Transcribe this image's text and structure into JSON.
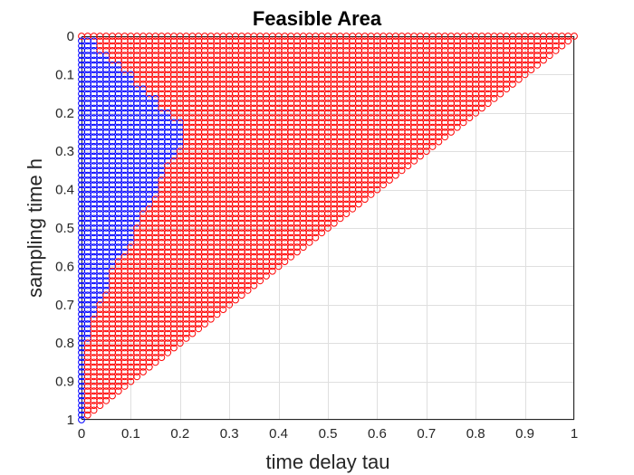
{
  "chart_data": {
    "type": "scatter",
    "title": "Feasible Area",
    "xlabel": "time delay tau",
    "ylabel": "sampling time h",
    "xlim": [
      0,
      1
    ],
    "ylim": [
      0,
      1
    ],
    "y_reversed": true,
    "grid": true,
    "x_ticks": [
      "0",
      "0.1",
      "0.2",
      "0.3",
      "0.4",
      "0.5",
      "0.6",
      "0.7",
      "0.8",
      "0.9",
      "1"
    ],
    "y_ticks": [
      "0",
      "0.1",
      "0.2",
      "0.3",
      "0.4",
      "0.5",
      "0.6",
      "0.7",
      "0.8",
      "0.9",
      "1"
    ],
    "marker": "circle-open",
    "colors": {
      "feasible": "#0000ff",
      "infeasible": "#ff0000"
    },
    "grid_step": {
      "tau": 0.0125,
      "h": 0.0125
    },
    "region_rule": "points with 0 <= tau <= 1 - h",
    "series": [
      {
        "color_key": "feasible",
        "boundary_tau_max_by_h": [
          [
            0.025,
            0.025
          ],
          [
            0.0375,
            0.025
          ],
          [
            0.05,
            0.05
          ],
          [
            0.0625,
            0.05
          ],
          [
            0.075,
            0.075
          ],
          [
            0.0875,
            0.075
          ],
          [
            0.1,
            0.1
          ],
          [
            0.125,
            0.1
          ],
          [
            0.15,
            0.125
          ],
          [
            0.175,
            0.15
          ],
          [
            0.2,
            0.175
          ],
          [
            0.225,
            0.2
          ],
          [
            0.25,
            0.21
          ],
          [
            0.275,
            0.2
          ],
          [
            0.3,
            0.19
          ],
          [
            0.325,
            0.18
          ],
          [
            0.35,
            0.17
          ],
          [
            0.375,
            0.16
          ],
          [
            0.4,
            0.15
          ],
          [
            0.425,
            0.14
          ],
          [
            0.45,
            0.13
          ],
          [
            0.475,
            0.12
          ],
          [
            0.5,
            0.11
          ],
          [
            0.525,
            0.1
          ],
          [
            0.55,
            0.09
          ],
          [
            0.575,
            0.08
          ],
          [
            0.6,
            0.07
          ],
          [
            0.625,
            0.06
          ],
          [
            0.65,
            0.05
          ],
          [
            0.675,
            0.045
          ],
          [
            0.7,
            0.035
          ],
          [
            0.725,
            0.025
          ],
          [
            0.75,
            0.02
          ],
          [
            0.775,
            0.015
          ],
          [
            0.8,
            0.01
          ],
          [
            0.85,
            0.005
          ],
          [
            0.9,
            0.0
          ],
          [
            0.975,
            0.0
          ]
        ]
      },
      {
        "color_key": "infeasible",
        "rule": "remaining points of the region"
      }
    ]
  }
}
